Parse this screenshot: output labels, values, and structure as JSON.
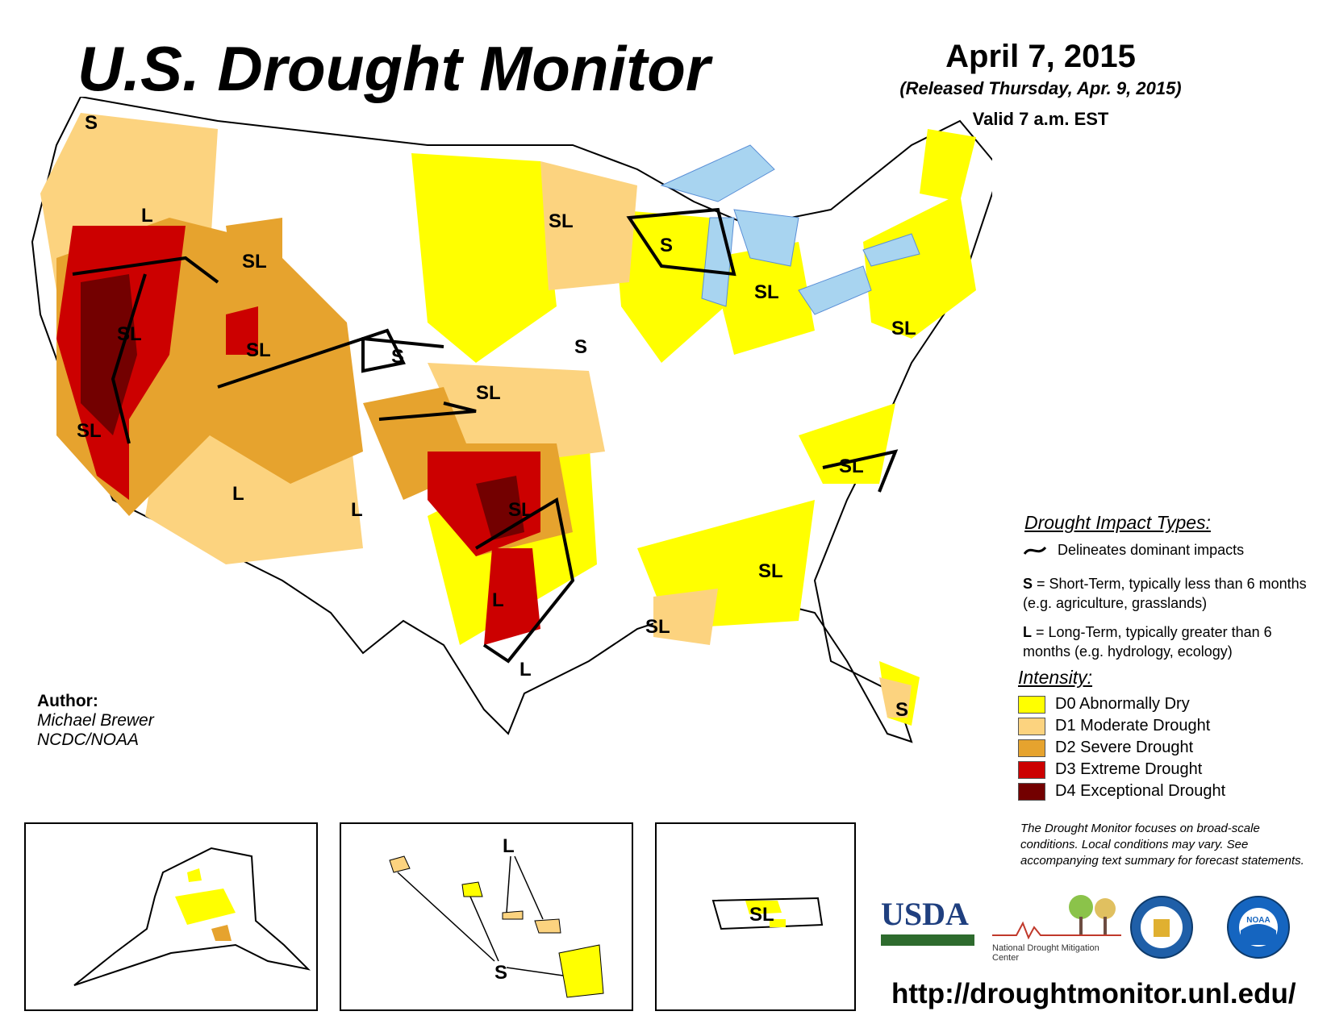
{
  "header": {
    "title": "U.S. Drought Monitor",
    "date": "April 7, 2015",
    "released": "(Released Thursday, Apr. 9, 2015)",
    "valid": "Valid 7 a.m. EST"
  },
  "map_labels": {
    "pnw_s": "S",
    "or_l": "L",
    "id_sl": "SL",
    "nv_sl": "SL",
    "ut_sl": "SL",
    "wy_s": "S",
    "ca_sl": "SL",
    "az_l": "L",
    "nm_l": "L",
    "mn_sl": "SL",
    "wi_s": "S",
    "mi_sl": "SL",
    "ia_s": "S",
    "ks_sl": "SL",
    "ok_sl": "SL",
    "tx_l": "L",
    "stx_l": "L",
    "la_sl": "SL",
    "al_sl": "SL",
    "tn_sl": "SL",
    "pa_sl": "SL",
    "fl_s": "S",
    "hi_l": "L",
    "hi_s": "S",
    "pr_sl": "SL"
  },
  "legend": {
    "impact_heading": "Drought Impact Types:",
    "delineates": "Delineates dominant impacts",
    "short_term_key": "S",
    "short_term_text": " = Short-Term, typically less than 6 months (e.g. agriculture, grasslands)",
    "long_term_key": "L",
    "long_term_text": " = Long-Term, typically greater than 6 months (e.g. hydrology, ecology)",
    "intensity_heading": "Intensity:",
    "intensity": [
      {
        "label": "D0 Abnormally Dry",
        "color": "#ffff00"
      },
      {
        "label": "D1 Moderate Drought",
        "color": "#fcd37f"
      },
      {
        "label": "D2 Severe Drought",
        "color": "#e6a32e"
      },
      {
        "label": "D3 Extreme Drought",
        "color": "#cc0000"
      },
      {
        "label": "D4 Exceptional Drought",
        "color": "#730000"
      }
    ]
  },
  "author": {
    "label": "Author:",
    "name": "Michael Brewer",
    "org": "NCDC/NOAA"
  },
  "disclaimer": "The Drought Monitor focuses on broad-scale conditions. Local conditions may vary. See accompanying text summary for forecast statements.",
  "logos": {
    "usda": "USDA",
    "ndmc": "National Drought Mitigation Center",
    "noaa": "NOAA"
  },
  "url": "http://droughtmonitor.unl.edu/",
  "colors": {
    "water": "#a8d4f0",
    "river": "#5a8fd6",
    "border": "#9a9a9a",
    "state_border": "#000000"
  }
}
